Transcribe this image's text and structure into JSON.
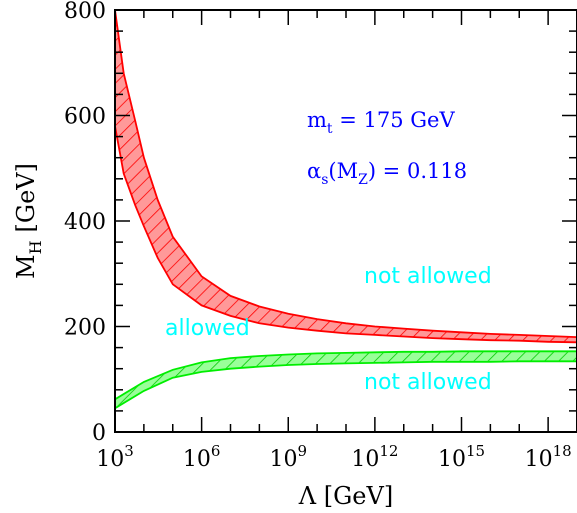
{
  "chart_data": {
    "type": "area",
    "x_scale": "log",
    "xlim": [
      1000.0,
      1e+19
    ],
    "ylim": [
      0,
      800
    ],
    "grid": false,
    "xlabel": "Λ [GeV]",
    "ylabel_main": "M",
    "ylabel_sub": "H",
    "ylabel_unit": "[GeV]",
    "x_ticks": [
      {
        "base": "10",
        "exp": "3",
        "value": 1000.0
      },
      {
        "base": "10",
        "exp": "6",
        "value": 1000000.0
      },
      {
        "base": "10",
        "exp": "9",
        "value": 1000000000.0
      },
      {
        "base": "10",
        "exp": "12",
        "value": 1000000000000.0
      },
      {
        "base": "10",
        "exp": "15",
        "value": 1000000000000000.0
      },
      {
        "base": "10",
        "exp": "18",
        "value": 1e+18
      }
    ],
    "y_ticks": [
      "0",
      "200",
      "400",
      "600",
      "800"
    ],
    "y_tick_values": [
      0,
      200,
      400,
      600,
      800
    ],
    "bands": [
      {
        "key": "upper",
        "color": "#ff0000",
        "fill": "#ff9999",
        "x": [
          1000.0,
          1000.0,
          2000.0,
          5000.0,
          10000.0,
          30000.0,
          100000.0,
          1000000.0,
          10000000.0,
          100000000.0,
          1000000000.0,
          10000000000.0,
          100000000000.0,
          1000000000000.0,
          10000000000000.0,
          100000000000000.0,
          1000000000000000.0,
          1e+16,
          1e+17,
          1e+18,
          1e+19
        ],
        "upper": [
          800,
          800,
          680,
          590,
          520,
          440,
          370,
          295,
          258,
          238,
          224,
          214,
          206,
          200,
          196,
          192,
          189,
          186,
          184,
          182,
          180
        ],
        "lower": [
          580,
          580,
          490,
          430,
          390,
          330,
          280,
          240,
          220,
          206,
          198,
          192,
          187,
          184,
          181,
          178,
          176,
          174,
          173,
          171,
          170
        ]
      },
      {
        "key": "lower",
        "color": "#00ee00",
        "fill": "#99ff99",
        "x": [
          1000.0,
          10000.0,
          100000.0,
          1000000.0,
          10000000.0,
          100000000.0,
          1000000000.0,
          10000000000.0,
          100000000000.0,
          1000000000000.0,
          10000000000000.0,
          100000000000000.0,
          1000000000000000.0,
          1e+16,
          1e+17,
          1e+18,
          1e+19
        ],
        "upper": [
          62,
          95,
          118,
          132,
          140,
          144,
          147,
          149,
          150,
          151,
          152,
          152,
          153,
          153,
          153,
          153,
          153
        ],
        "lower": [
          45,
          78,
          103,
          114,
          120,
          124,
          127,
          129,
          130,
          131,
          132,
          133,
          133,
          133,
          134,
          134,
          134
        ]
      }
    ],
    "annotations": {
      "mt_label": "m",
      "mt_sub": "t",
      "mt_value": " = 175 GeV",
      "alpha_label": "α",
      "alpha_sub": "s",
      "alpha_mid": "(M",
      "alpha_sub2": "Z",
      "alpha_value": ") = 0.118",
      "color": "#0000ff"
    },
    "regions": {
      "top": "not allowed",
      "middle": "allowed",
      "bottom": "not allowed",
      "color": "#00ffff"
    }
  }
}
